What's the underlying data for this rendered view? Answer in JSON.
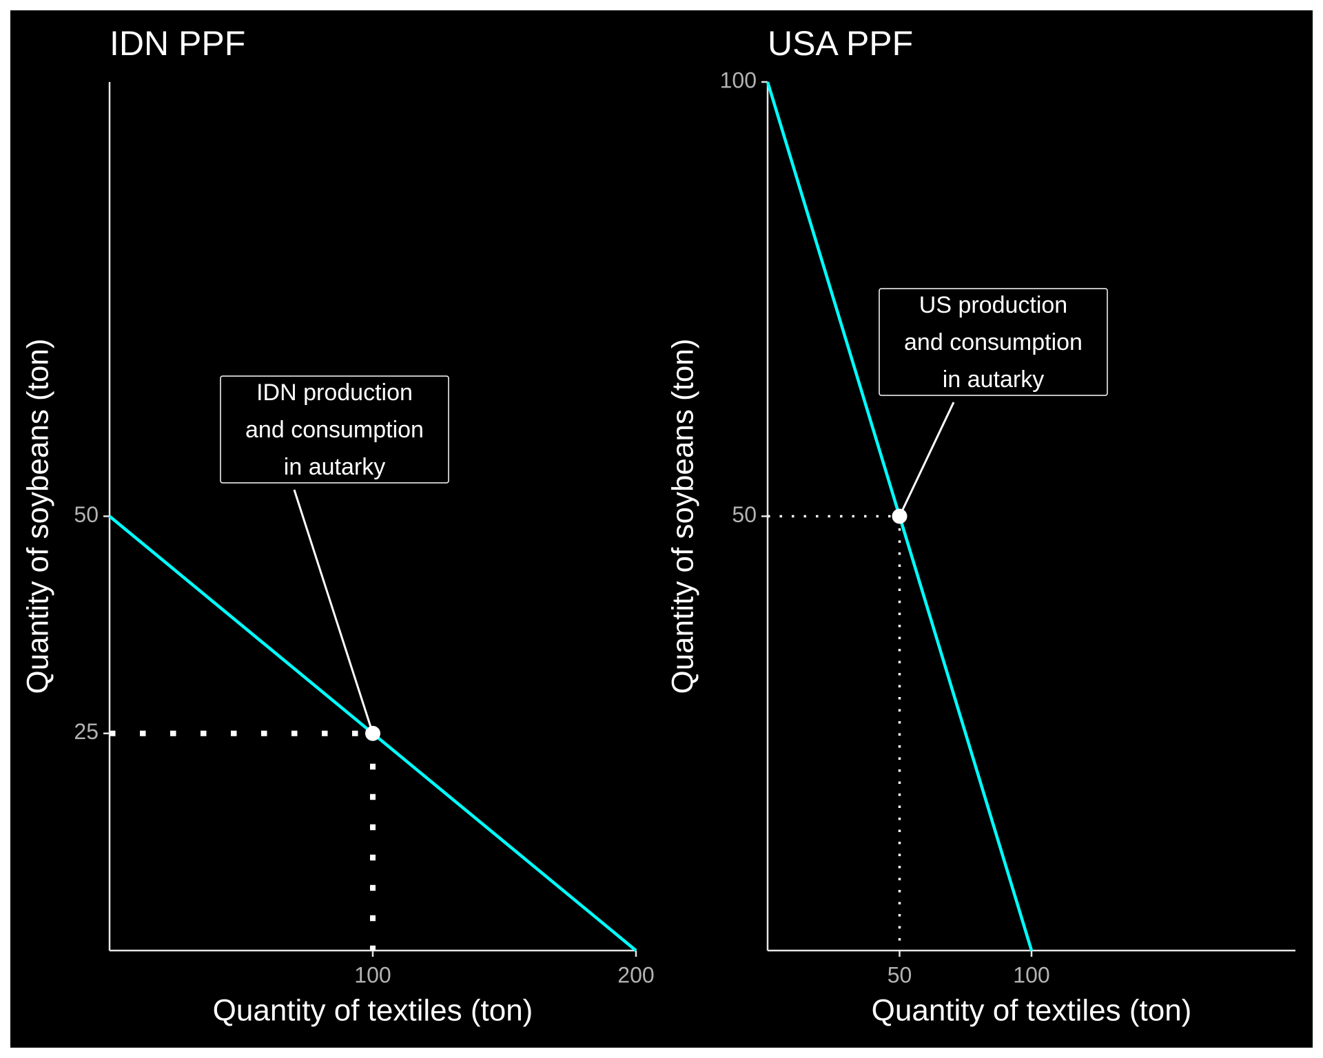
{
  "chart_data": [
    {
      "type": "line",
      "title": "IDN PPF",
      "x_label": "Quantity of textiles (ton)",
      "y_label": "Quantity of soybeans (ton)",
      "xlim": [
        0,
        200
      ],
      "ylim": [
        0,
        100
      ],
      "xticks": [
        100,
        200
      ],
      "yticks": [
        25,
        50
      ],
      "series": [
        {
          "color": "#00ffff",
          "x": [
            0,
            200
          ],
          "values": [
            50,
            0
          ]
        }
      ],
      "point": {
        "x": 100,
        "y": 25,
        "color": "#ffffff"
      },
      "annotation": [
        "IDN production",
        "and consumption",
        "in autarky"
      ]
    },
    {
      "type": "line",
      "title": "USA PPF",
      "x_label": "Quantity of textiles (ton)",
      "y_label": "Quantity of soybeans (ton)",
      "xlim": [
        0,
        200
      ],
      "ylim": [
        0,
        100
      ],
      "xticks": [
        50,
        100
      ],
      "yticks": [
        50,
        100
      ],
      "series": [
        {
          "color": "#00ffff",
          "x": [
            0,
            100
          ],
          "values": [
            100,
            0
          ]
        }
      ],
      "point": {
        "x": 50,
        "y": 50,
        "color": "#ffffff"
      },
      "annotation": [
        "US production",
        "and consumption",
        "in autarky"
      ]
    }
  ]
}
